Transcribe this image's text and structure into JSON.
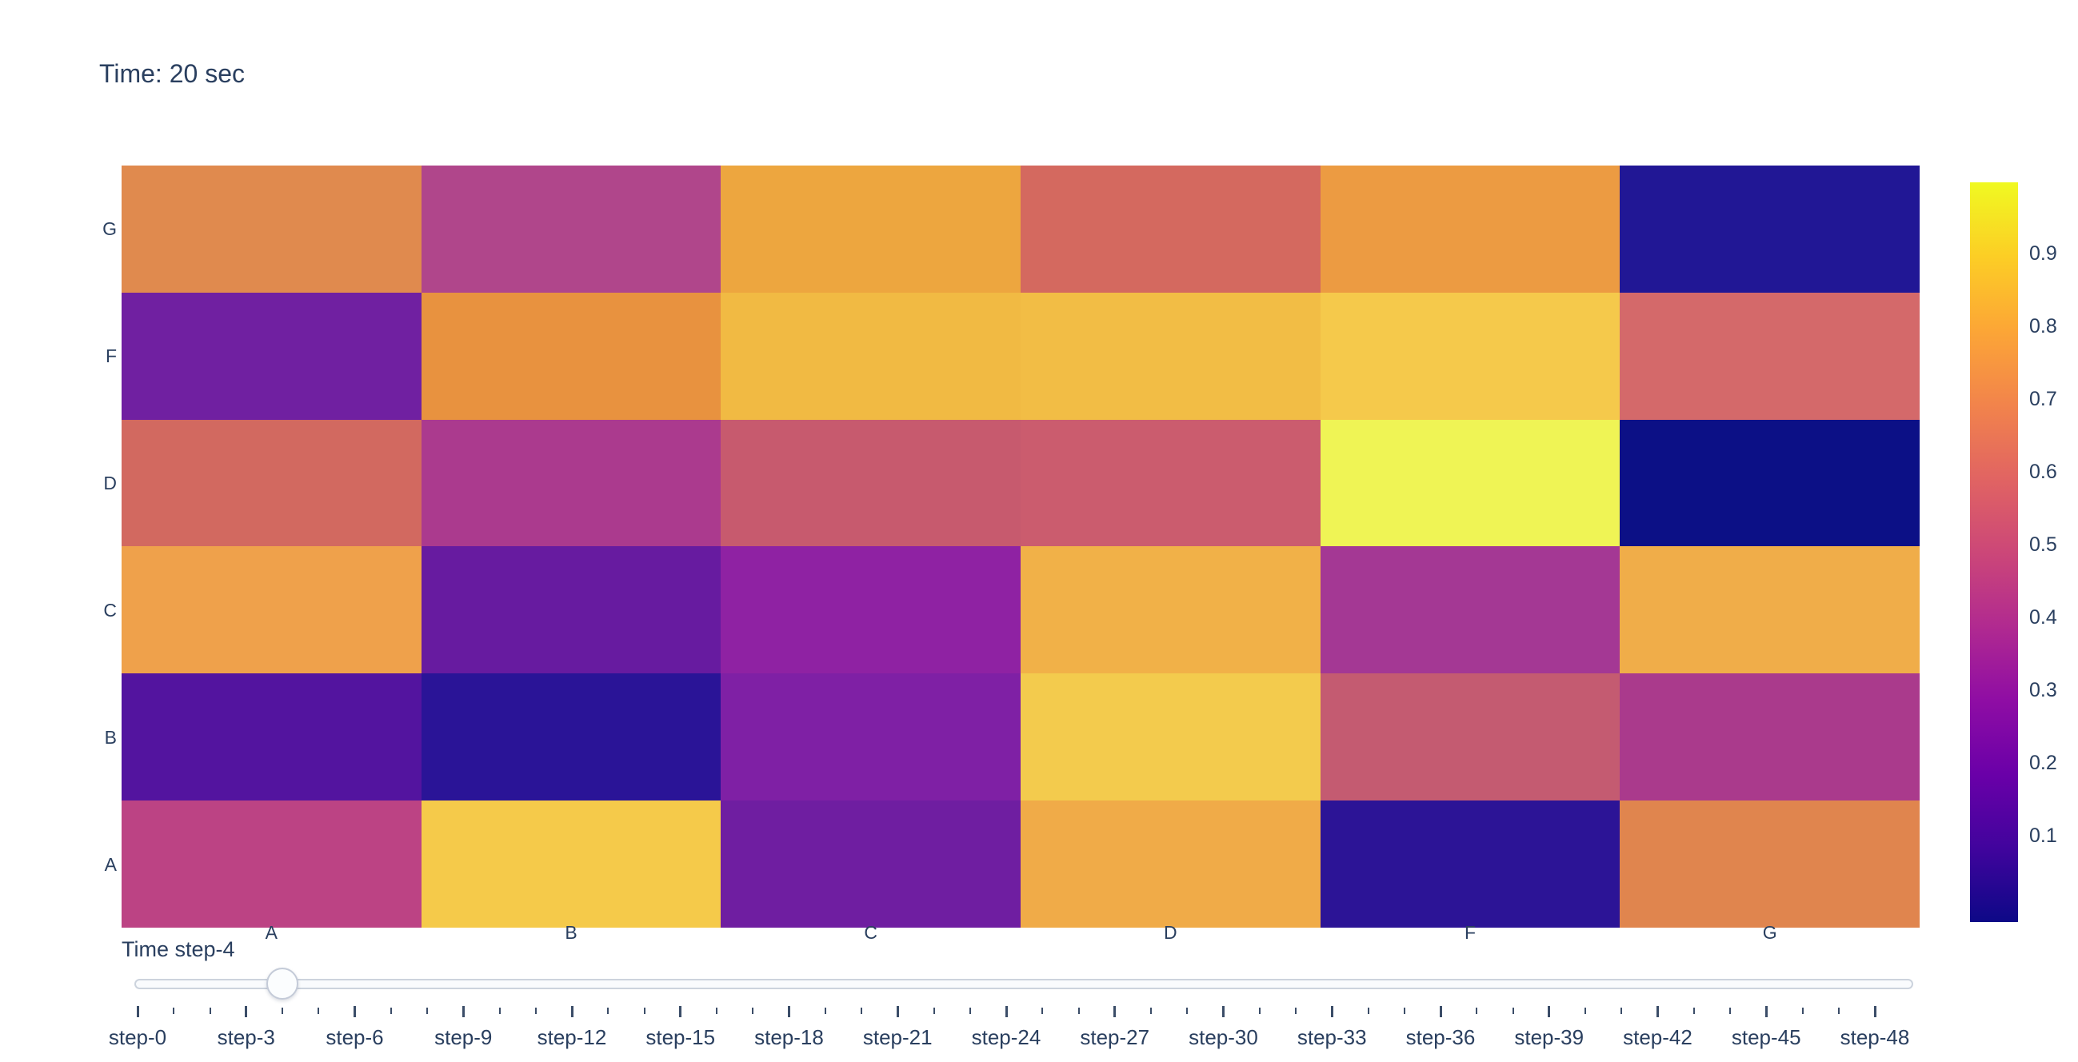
{
  "title": "Time: 20 sec",
  "colors": {
    "text": "#2a3f5f",
    "background": "#ffffff",
    "slider_rail_fill": "#f9fbfd",
    "slider_rail_border": "#ccd3dd",
    "slider_handle_fill": "#fbfdfe",
    "slider_handle_border": "#c4cbd8",
    "tick_mark": "#3b4d68"
  },
  "heatmap": {
    "x_labels": [
      "A",
      "B",
      "C",
      "D",
      "F",
      "G"
    ],
    "y_labels_top_to_bottom": [
      "G",
      "F",
      "D",
      "C",
      "B",
      "A"
    ],
    "cell_colors_rows_top_to_bottom": [
      [
        "#e08a4e",
        "#b0468b",
        "#eda63f",
        "#d4695f",
        "#ec9b42",
        "#211795"
      ],
      [
        "#7020a1",
        "#e8923f",
        "#f1ba43",
        "#f2bd45",
        "#f5c94b",
        "#d4696a"
      ],
      [
        "#d26960",
        "#ab3a8e",
        "#c75a6e",
        "#cb5c6e",
        "#eff455",
        "#0c1086"
      ],
      [
        "#efa14b",
        "#671ba0",
        "#8f22a3",
        "#f1b148",
        "#a43894",
        "#f0ad49"
      ],
      [
        "#53149f",
        "#2a1497",
        "#7f20a5",
        "#f3cb4d",
        "#c45b71",
        "#aa3a8c"
      ],
      [
        "#bc4384",
        "#f5ca4a",
        "#6f1ea1",
        "#f0ab48",
        "#2c1496",
        "#e0854e"
      ]
    ]
  },
  "chart_data": {
    "type": "heatmap",
    "title": "Time: 20 sec",
    "x": [
      "A",
      "B",
      "C",
      "D",
      "F",
      "G"
    ],
    "y_top_to_bottom": [
      "G",
      "F",
      "D",
      "C",
      "B",
      "A"
    ],
    "z_rows_top_to_bottom": [
      [
        0.65,
        0.42,
        0.77,
        0.57,
        0.73,
        0.05
      ],
      [
        0.22,
        0.7,
        0.83,
        0.84,
        0.87,
        0.57
      ],
      [
        0.59,
        0.38,
        0.51,
        0.52,
        0.97,
        0.01
      ],
      [
        0.76,
        0.2,
        0.31,
        0.81,
        0.36,
        0.8
      ],
      [
        0.14,
        0.07,
        0.28,
        0.87,
        0.5,
        0.39
      ],
      [
        0.43,
        0.88,
        0.23,
        0.8,
        0.07,
        0.64
      ]
    ],
    "colorscale": "plasma",
    "zmin": 0,
    "zmax": 1,
    "grid": false,
    "legend_position": "right-colorbar"
  },
  "colorbar": {
    "tick_labels": [
      "0.9",
      "0.8",
      "0.7",
      "0.6",
      "0.5",
      "0.4",
      "0.3",
      "0.2",
      "0.1"
    ],
    "gradient_top_to_bottom": [
      "#f0f921",
      "#fcce25",
      "#fca636",
      "#f2844b",
      "#e16462",
      "#cc4778",
      "#b12a90",
      "#8f0da4",
      "#6a00a8",
      "#41049d",
      "#0d0887"
    ]
  },
  "slider": {
    "current_value_label": "Time step-4",
    "current_step_index": 4,
    "step_count": 49,
    "major_every": 3,
    "tick_labels": [
      "step-0",
      "step-3",
      "step-6",
      "step-9",
      "step-12",
      "step-15",
      "step-18",
      "step-21",
      "step-24",
      "step-27",
      "step-30",
      "step-33",
      "step-36",
      "step-39",
      "step-42",
      "step-45",
      "step-48"
    ]
  }
}
